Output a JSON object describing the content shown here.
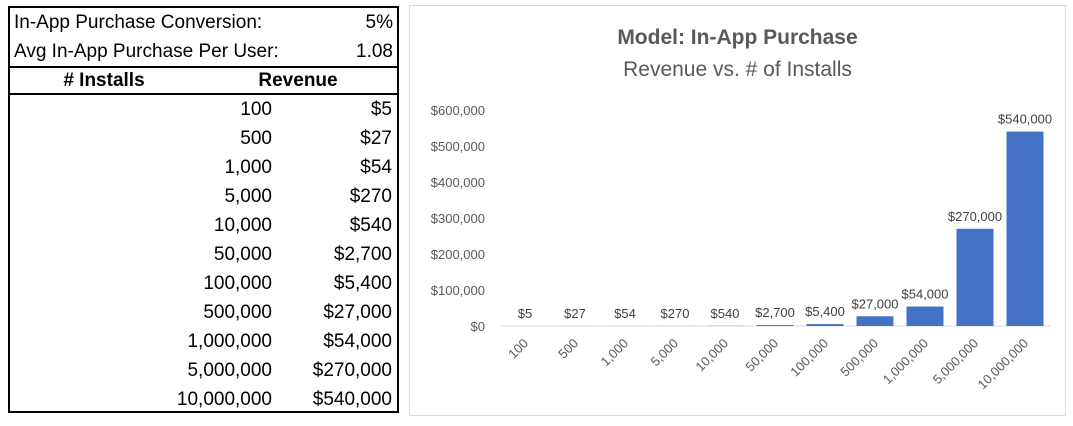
{
  "params": [
    {
      "label": "In-App Purchase Conversion:",
      "value": "5%"
    },
    {
      "label": "Avg In-App Purchase Per User:",
      "value": "1.08"
    }
  ],
  "table": {
    "headers": [
      "# Installs",
      "Revenue"
    ],
    "rows": [
      [
        "100",
        "$5"
      ],
      [
        "500",
        "$27"
      ],
      [
        "1,000",
        "$54"
      ],
      [
        "5,000",
        "$270"
      ],
      [
        "10,000",
        "$540"
      ],
      [
        "50,000",
        "$2,700"
      ],
      [
        "100,000",
        "$5,400"
      ],
      [
        "500,000",
        "$27,000"
      ],
      [
        "1,000,000",
        "$54,000"
      ],
      [
        "5,000,000",
        "$270,000"
      ],
      [
        "10,000,000",
        "$540,000"
      ]
    ]
  },
  "colors": {
    "bar": "#4472c4",
    "grid": "#d9d9d9",
    "text": "#595959"
  },
  "chart_data": {
    "type": "bar",
    "title": "Model: In-App Purchase",
    "subtitle": "Revenue vs. # of Installs",
    "categories": [
      "100",
      "500",
      "1,000",
      "5,000",
      "10,000",
      "50,000",
      "100,000",
      "500,000",
      "1,000,000",
      "5,000,000",
      "10,000,000"
    ],
    "values": [
      5,
      27,
      54,
      270,
      540,
      2700,
      5400,
      27000,
      54000,
      270000,
      540000
    ],
    "data_labels": [
      "$5",
      "$27",
      "$54",
      "$270",
      "$540",
      "$2,700",
      "$5,400",
      "$27,000",
      "$54,000",
      "$270,000",
      "$540,000"
    ],
    "yticks": [
      "$0",
      "$100,000",
      "$200,000",
      "$300,000",
      "$400,000",
      "$500,000",
      "$600,000"
    ],
    "ylim": [
      0,
      600000
    ],
    "xlabel": "",
    "ylabel": "",
    "grid": false,
    "legend": "none"
  }
}
